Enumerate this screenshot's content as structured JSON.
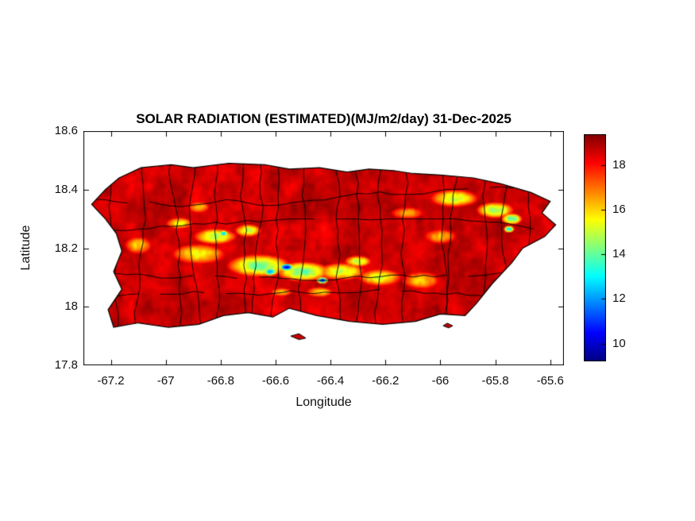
{
  "chart_data": {
    "type": "heatmap",
    "title": "SOLAR RADIATION (ESTIMATED)(MJ/m2/day) 31-Dec-2025",
    "variable": "Solar radiation (estimated)",
    "units": "MJ/m2/day",
    "date": "31-Dec-2025",
    "xlabel": "Longitude",
    "ylabel": "Latitude",
    "xlim": [
      -67.3,
      -65.55
    ],
    "ylim": [
      17.8,
      18.6
    ],
    "x_tick_values": [
      -67.2,
      -67,
      -66.8,
      -66.6,
      -66.4,
      -66.2,
      -66,
      -65.8,
      -65.6
    ],
    "x_tick_labels": [
      "-67.2",
      "-67",
      "-66.8",
      "-66.6",
      "-66.4",
      "-66.2",
      "-66",
      "-65.8",
      "-65.6"
    ],
    "y_tick_values": [
      17.8,
      18,
      18.2,
      18.4,
      18.6
    ],
    "y_tick_labels": [
      "17.8",
      "18",
      "18.2",
      "18.4",
      "18.6"
    ],
    "grid": false,
    "background_color": "#ffffff",
    "colorbar": {
      "colormap": "jet",
      "clim": [
        9.2,
        19.4
      ],
      "tick_values": [
        10,
        12,
        14,
        16,
        18
      ],
      "tick_labels": [
        "10",
        "12",
        "14",
        "16",
        "18"
      ],
      "position": "right"
    },
    "base_value": 18.65,
    "boundaries": {
      "municipal": true,
      "color": "#000000"
    },
    "island_outline": [
      [
        -67.17,
        18.44
      ],
      [
        -67.09,
        18.475
      ],
      [
        -66.98,
        18.485
      ],
      [
        -66.9,
        18.475
      ],
      [
        -66.77,
        18.49
      ],
      [
        -66.64,
        18.485
      ],
      [
        -66.55,
        18.47
      ],
      [
        -66.44,
        18.475
      ],
      [
        -66.34,
        18.46
      ],
      [
        -66.26,
        18.47
      ],
      [
        -66.17,
        18.465
      ],
      [
        -66.1,
        18.455
      ],
      [
        -66.0,
        18.45
      ],
      [
        -65.88,
        18.44
      ],
      [
        -65.78,
        18.42
      ],
      [
        -65.67,
        18.39
      ],
      [
        -65.6,
        18.36
      ],
      [
        -65.63,
        18.32
      ],
      [
        -65.58,
        18.28
      ],
      [
        -65.62,
        18.24
      ],
      [
        -65.7,
        18.2
      ],
      [
        -65.74,
        18.15
      ],
      [
        -65.81,
        18.08
      ],
      [
        -65.87,
        18.01
      ],
      [
        -65.91,
        17.97
      ],
      [
        -66.0,
        17.975
      ],
      [
        -66.09,
        17.95
      ],
      [
        -66.21,
        17.94
      ],
      [
        -66.33,
        17.95
      ],
      [
        -66.45,
        17.97
      ],
      [
        -66.55,
        17.995
      ],
      [
        -66.61,
        17.965
      ],
      [
        -66.7,
        17.98
      ],
      [
        -66.79,
        17.97
      ],
      [
        -66.88,
        17.94
      ],
      [
        -66.99,
        17.93
      ],
      [
        -67.1,
        17.945
      ],
      [
        -67.19,
        17.93
      ],
      [
        -67.21,
        17.99
      ],
      [
        -67.16,
        18.06
      ],
      [
        -67.19,
        18.12
      ],
      [
        -67.16,
        18.19
      ],
      [
        -67.18,
        18.25
      ],
      [
        -67.22,
        18.3
      ],
      [
        -67.27,
        18.35
      ],
      [
        -67.22,
        18.4
      ]
    ],
    "islets": [
      [
        [
          -66.545,
          17.9
        ],
        [
          -66.515,
          17.888
        ],
        [
          -66.49,
          17.893
        ],
        [
          -66.515,
          17.908
        ]
      ],
      [
        [
          -65.99,
          17.935
        ],
        [
          -65.97,
          17.928
        ],
        [
          -65.955,
          17.935
        ],
        [
          -65.975,
          17.944
        ]
      ]
    ],
    "low_radiation_features": [
      {
        "lon": -66.88,
        "lat": 18.18,
        "rx": 0.1,
        "ry": 0.035,
        "value": 15.5
      },
      {
        "lon": -66.66,
        "lat": 18.14,
        "rx": 0.12,
        "ry": 0.04,
        "value": 14.3
      },
      {
        "lon": -66.5,
        "lat": 18.12,
        "rx": 0.1,
        "ry": 0.035,
        "value": 14.0
      },
      {
        "lon": -66.36,
        "lat": 18.12,
        "rx": 0.09,
        "ry": 0.03,
        "value": 15.0
      },
      {
        "lon": -66.22,
        "lat": 18.1,
        "rx": 0.08,
        "ry": 0.03,
        "value": 15.2
      },
      {
        "lon": -66.07,
        "lat": 18.09,
        "rx": 0.07,
        "ry": 0.03,
        "value": 16.0
      },
      {
        "lon": -66.56,
        "lat": 18.135,
        "rx": 0.028,
        "ry": 0.013,
        "value": 10.0
      },
      {
        "lon": -66.43,
        "lat": 18.09,
        "rx": 0.022,
        "ry": 0.011,
        "value": 10.5
      },
      {
        "lon": -66.62,
        "lat": 18.12,
        "rx": 0.03,
        "ry": 0.015,
        "value": 12.5
      },
      {
        "lon": -66.82,
        "lat": 18.24,
        "rx": 0.08,
        "ry": 0.028,
        "value": 14.8
      },
      {
        "lon": -66.95,
        "lat": 18.285,
        "rx": 0.05,
        "ry": 0.02,
        "value": 15.5
      },
      {
        "lon": -66.79,
        "lat": 18.25,
        "rx": 0.02,
        "ry": 0.011,
        "value": 12.2
      },
      {
        "lon": -65.95,
        "lat": 18.37,
        "rx": 0.09,
        "ry": 0.03,
        "value": 15.0
      },
      {
        "lon": -65.8,
        "lat": 18.33,
        "rx": 0.07,
        "ry": 0.028,
        "value": 14.5
      },
      {
        "lon": -65.74,
        "lat": 18.3,
        "rx": 0.04,
        "ry": 0.02,
        "value": 13.8
      },
      {
        "lon": -65.75,
        "lat": 18.265,
        "rx": 0.02,
        "ry": 0.012,
        "value": 12.8
      },
      {
        "lon": -66.0,
        "lat": 18.24,
        "rx": 0.06,
        "ry": 0.025,
        "value": 16.2
      },
      {
        "lon": -67.1,
        "lat": 18.21,
        "rx": 0.05,
        "ry": 0.03,
        "value": 16.0
      },
      {
        "lon": -66.3,
        "lat": 18.155,
        "rx": 0.05,
        "ry": 0.02,
        "value": 14.8
      },
      {
        "lon": -66.12,
        "lat": 18.32,
        "rx": 0.06,
        "ry": 0.02,
        "value": 16.3
      },
      {
        "lon": -66.44,
        "lat": 18.05,
        "rx": 0.05,
        "ry": 0.018,
        "value": 15.8
      },
      {
        "lon": -66.58,
        "lat": 18.05,
        "rx": 0.04,
        "ry": 0.015,
        "value": 16.0
      },
      {
        "lon": -66.7,
        "lat": 18.26,
        "rx": 0.05,
        "ry": 0.022,
        "value": 15.0
      },
      {
        "lon": -66.88,
        "lat": 18.34,
        "rx": 0.04,
        "ry": 0.02,
        "value": 16.0
      }
    ]
  }
}
